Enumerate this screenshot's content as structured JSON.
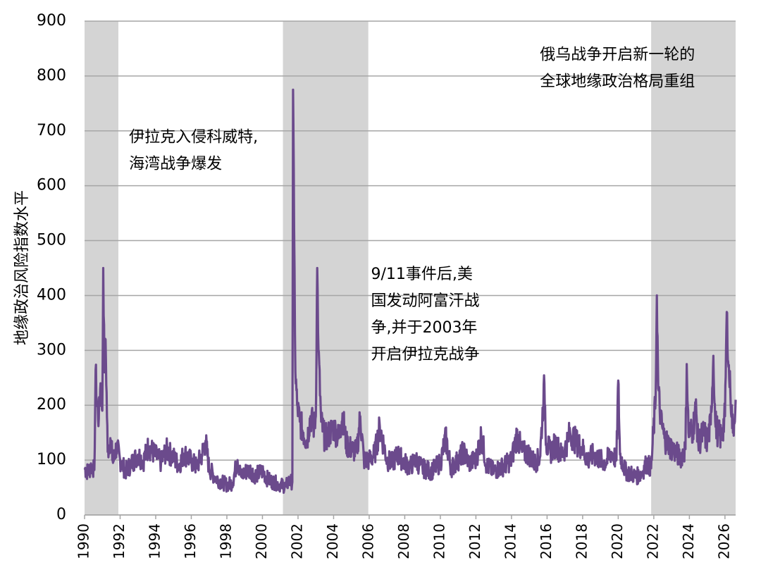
{
  "chart_data": {
    "type": "line",
    "title": "",
    "xlabel": "",
    "ylabel": "地缘政治风险指数水平",
    "xlim": [
      1990,
      2026.6
    ],
    "ylim": [
      0,
      900
    ],
    "yticks": [
      0,
      100,
      200,
      300,
      400,
      500,
      600,
      700,
      800,
      900
    ],
    "xticks": [
      "1990",
      "1992",
      "1994",
      "1996",
      "1998",
      "2000",
      "2002",
      "2004",
      "2006",
      "2008",
      "2010",
      "2012",
      "2014",
      "2016",
      "2018",
      "2020",
      "2022",
      "2024",
      "2026"
    ],
    "grid": "horizontal",
    "legend": "none",
    "line_color": "#6b4a8c",
    "shade_color": "#d4d4d4",
    "shaded_periods": [
      {
        "start": 1990,
        "end": 1991.9
      },
      {
        "start": 2001.15,
        "end": 2005.95
      },
      {
        "start": 2021.85,
        "end": 2026.6
      }
    ],
    "annotations": [
      {
        "lines": [
          "伊拉克入侵科威特,",
          "海湾战争爆发"
        ],
        "x": 1992.5,
        "y": 680
      },
      {
        "lines": [
          "9/11事件后,美",
          "国发动阿富汗战",
          "争,并于2003年",
          "开启伊拉克战争"
        ],
        "x": 2006.1,
        "y": 430
      },
      {
        "lines": [
          "俄乌战争开启新一轮的",
          "全球地缘政治格局重组"
        ],
        "x": 2015.6,
        "y": 830
      }
    ],
    "series": [
      {
        "points": [
          [
            1990.0,
            85
          ],
          [
            1990.2,
            78
          ],
          [
            1990.4,
            90
          ],
          [
            1990.55,
            82
          ],
          [
            1990.62,
            265
          ],
          [
            1990.7,
            200
          ],
          [
            1990.8,
            175
          ],
          [
            1990.9,
            240
          ],
          [
            1991.0,
            190
          ],
          [
            1991.05,
            450
          ],
          [
            1991.12,
            260
          ],
          [
            1991.18,
            320
          ],
          [
            1991.3,
            115
          ],
          [
            1991.45,
            140
          ],
          [
            1991.6,
            95
          ],
          [
            1991.8,
            125
          ],
          [
            1992.0,
            100
          ],
          [
            1992.3,
            80
          ],
          [
            1992.6,
            92
          ],
          [
            1993.0,
            110
          ],
          [
            1993.3,
            98
          ],
          [
            1993.6,
            125
          ],
          [
            1994.0,
            108
          ],
          [
            1994.3,
            96
          ],
          [
            1994.6,
            118
          ],
          [
            1995.0,
            105
          ],
          [
            1995.3,
            90
          ],
          [
            1995.6,
            112
          ],
          [
            1996.0,
            98
          ],
          [
            1996.3,
            88
          ],
          [
            1996.6,
            110
          ],
          [
            1996.8,
            135
          ],
          [
            1997.0,
            85
          ],
          [
            1997.3,
            70
          ],
          [
            1997.6,
            62
          ],
          [
            1998.0,
            55
          ],
          [
            1998.3,
            58
          ],
          [
            1998.6,
            100
          ],
          [
            1998.8,
            70
          ],
          [
            1999.0,
            78
          ],
          [
            1999.3,
            82
          ],
          [
            1999.6,
            72
          ],
          [
            2000.0,
            80
          ],
          [
            2000.3,
            65
          ],
          [
            2000.6,
            60
          ],
          [
            2001.0,
            55
          ],
          [
            2001.3,
            52
          ],
          [
            2001.5,
            62
          ],
          [
            2001.68,
            60
          ],
          [
            2001.72,
            775
          ],
          [
            2001.78,
            520
          ],
          [
            2001.85,
            260
          ],
          [
            2001.95,
            200
          ],
          [
            2002.1,
            170
          ],
          [
            2002.3,
            150
          ],
          [
            2002.5,
            135
          ],
          [
            2002.7,
            180
          ],
          [
            2002.9,
            160
          ],
          [
            2003.0,
            180
          ],
          [
            2003.08,
            450
          ],
          [
            2003.15,
            300
          ],
          [
            2003.3,
            170
          ],
          [
            2003.5,
            140
          ],
          [
            2003.7,
            145
          ],
          [
            2004.0,
            160
          ],
          [
            2004.3,
            140
          ],
          [
            2004.5,
            185
          ],
          [
            2004.7,
            130
          ],
          [
            2005.0,
            120
          ],
          [
            2005.3,
            115
          ],
          [
            2005.5,
            180
          ],
          [
            2005.7,
            100
          ],
          [
            2006.0,
            100
          ],
          [
            2006.3,
            110
          ],
          [
            2006.6,
            160
          ],
          [
            2007.0,
            100
          ],
          [
            2007.3,
            95
          ],
          [
            2007.6,
            110
          ],
          [
            2008.0,
            95
          ],
          [
            2008.3,
            88
          ],
          [
            2008.6,
            100
          ],
          [
            2009.0,
            85
          ],
          [
            2009.5,
            80
          ],
          [
            2010.0,
            95
          ],
          [
            2010.3,
            140
          ],
          [
            2010.6,
            85
          ],
          [
            2011.0,
            100
          ],
          [
            2011.3,
            115
          ],
          [
            2011.6,
            95
          ],
          [
            2012.0,
            100
          ],
          [
            2012.3,
            145
          ],
          [
            2012.6,
            90
          ],
          [
            2013.0,
            80
          ],
          [
            2013.5,
            88
          ],
          [
            2014.0,
            100
          ],
          [
            2014.3,
            145
          ],
          [
            2014.6,
            115
          ],
          [
            2015.0,
            110
          ],
          [
            2015.3,
            95
          ],
          [
            2015.6,
            105
          ],
          [
            2015.85,
            240
          ],
          [
            2015.95,
            130
          ],
          [
            2016.2,
            115
          ],
          [
            2016.5,
            130
          ],
          [
            2016.8,
            110
          ],
          [
            2017.0,
            120
          ],
          [
            2017.3,
            150
          ],
          [
            2017.6,
            135
          ],
          [
            2018.0,
            120
          ],
          [
            2018.3,
            100
          ],
          [
            2018.6,
            110
          ],
          [
            2019.0,
            100
          ],
          [
            2019.3,
            95
          ],
          [
            2019.6,
            115
          ],
          [
            2019.9,
            100
          ],
          [
            2020.0,
            245
          ],
          [
            2020.1,
            110
          ],
          [
            2020.4,
            80
          ],
          [
            2020.7,
            75
          ],
          [
            2021.0,
            70
          ],
          [
            2021.3,
            75
          ],
          [
            2021.6,
            95
          ],
          [
            2021.85,
            85
          ],
          [
            2022.1,
            210
          ],
          [
            2022.17,
            400
          ],
          [
            2022.25,
            230
          ],
          [
            2022.4,
            170
          ],
          [
            2022.6,
            140
          ],
          [
            2022.9,
            125
          ],
          [
            2023.2,
            115
          ],
          [
            2023.5,
            105
          ],
          [
            2023.78,
            120
          ],
          [
            2023.85,
            275
          ],
          [
            2023.95,
            150
          ],
          [
            2024.2,
            155
          ],
          [
            2024.35,
            200
          ],
          [
            2024.5,
            130
          ],
          [
            2024.8,
            150
          ],
          [
            2025.0,
            135
          ],
          [
            2025.2,
            165
          ],
          [
            2025.35,
            290
          ],
          [
            2025.45,
            170
          ],
          [
            2025.6,
            150
          ],
          [
            2025.8,
            140
          ],
          [
            2026.0,
            180
          ],
          [
            2026.1,
            370
          ],
          [
            2026.2,
            270
          ],
          [
            2026.3,
            230
          ],
          [
            2026.45,
            150
          ],
          [
            2026.6,
            210
          ]
        ]
      }
    ]
  }
}
